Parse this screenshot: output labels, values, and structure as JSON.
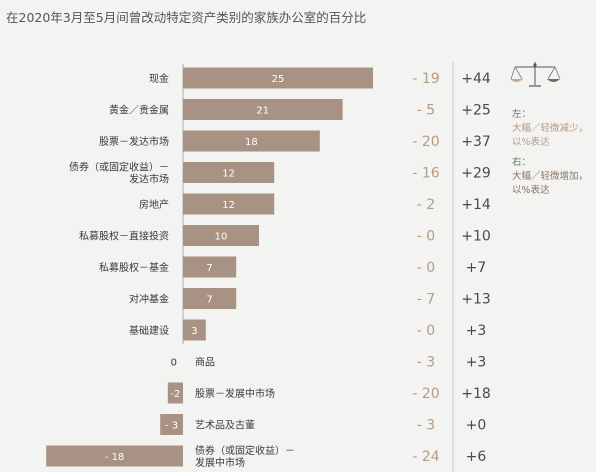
{
  "chart_data": {
    "type": "bar",
    "title": "在2020年3月至5月间曾改动特定资产类别的家族办公室的百分比",
    "categories": [
      "现金",
      "黄金／贵金属",
      "股票－发达市场",
      "债券（或固定收益）－\n发达市场",
      "房地产",
      "私募股权－直接投资",
      "私募股权－基金",
      "对冲基金",
      "基础建设",
      "商品",
      "股票－发展中市场",
      "艺术品及古董",
      "债券（或固定收益）－\n发展中市场"
    ],
    "values": [
      25,
      21,
      18,
      12,
      12,
      10,
      7,
      7,
      3,
      0,
      -2,
      -3,
      -18
    ],
    "value_labels": [
      "25",
      "21",
      "18",
      "12",
      "12",
      "10",
      "7",
      "7",
      "3",
      "0",
      "-2",
      "- 3",
      "- 18"
    ],
    "decrease": [
      -19,
      -5,
      -20,
      -16,
      -2,
      0,
      0,
      -7,
      0,
      -3,
      -20,
      -3,
      -24
    ],
    "decrease_labels": [
      "- 19",
      "- 5",
      "- 20",
      "- 16",
      "- 2",
      "- 0",
      "- 0",
      "- 7",
      "- 0",
      "- 3",
      "- 20",
      "- 3",
      "- 24"
    ],
    "increase": [
      44,
      25,
      37,
      29,
      14,
      10,
      7,
      13,
      3,
      3,
      18,
      0,
      6
    ],
    "increase_labels": [
      "+44",
      "+25",
      "+37",
      "+29",
      "+14",
      "+10",
      "+7",
      "+13",
      "+3",
      "+3",
      "+18",
      "+0",
      "+6"
    ],
    "colors": {
      "bar": "#a89283",
      "decrease": "#b79b80",
      "increase": "#4a4a4a",
      "label": "#3a3a3a",
      "axis": "#9a9a9a"
    }
  },
  "legend": {
    "left_head": "左：",
    "left_body": [
      "大幅／轻微减少，",
      "以%表达"
    ],
    "right_head": "右：",
    "right_body": [
      "大幅／轻微增加，",
      "以%表达"
    ]
  },
  "icons": {
    "scale": "balance-scale-icon"
  }
}
